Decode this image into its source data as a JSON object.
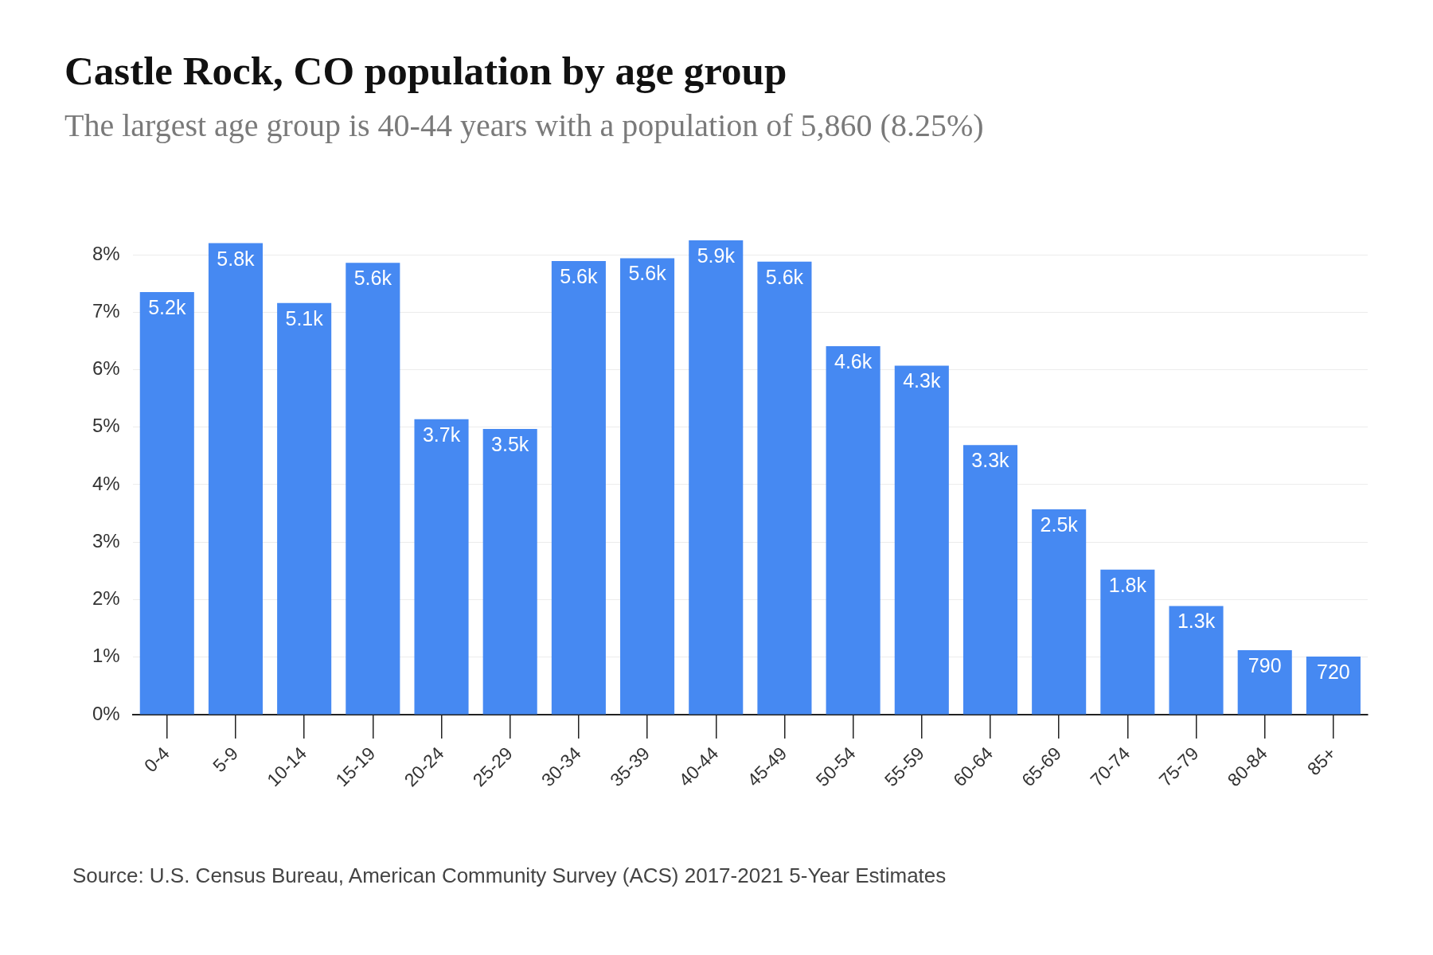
{
  "chart_data": {
    "type": "bar",
    "title": "Castle Rock, CO population by age group",
    "subtitle": "The largest age group is 40-44 years with a population of 5,860 (8.25%)",
    "categories": [
      "0-4",
      "5-9",
      "10-14",
      "15-19",
      "20-24",
      "25-29",
      "30-34",
      "35-39",
      "40-44",
      "45-49",
      "50-54",
      "55-59",
      "60-64",
      "65-69",
      "70-74",
      "75-79",
      "80-84",
      "85+"
    ],
    "values": [
      7.35,
      8.2,
      7.16,
      7.86,
      5.14,
      4.97,
      7.89,
      7.94,
      8.25,
      7.88,
      6.41,
      6.07,
      4.69,
      3.57,
      2.52,
      1.89,
      1.12,
      1.01
    ],
    "color": "#4689f2",
    "ylim": [
      0,
      8.25
    ],
    "yticks": [
      {
        "value": 0,
        "label": "0%"
      },
      {
        "value": 1,
        "label": "1%"
      },
      {
        "value": 2,
        "label": "2%"
      },
      {
        "value": 3,
        "label": "3%"
      },
      {
        "value": 4,
        "label": "4%"
      },
      {
        "value": 5,
        "label": "5%"
      },
      {
        "value": 6,
        "label": "6%"
      },
      {
        "value": 7,
        "label": "7%"
      },
      {
        "value": 8,
        "label": "8%"
      }
    ],
    "grid": "y",
    "annotations": [
      {
        "text": "5.2k",
        "x": "0-4",
        "y": 7.35
      },
      {
        "text": "5.8k",
        "x": "5-9",
        "y": 8.2
      },
      {
        "text": "5.1k",
        "x": "10-14",
        "y": 7.16
      },
      {
        "text": "5.6k",
        "x": "15-19",
        "y": 7.86
      },
      {
        "text": "3.7k",
        "x": "20-24",
        "y": 5.14
      },
      {
        "text": "3.5k",
        "x": "25-29",
        "y": 4.97
      },
      {
        "text": "5.6k",
        "x": "30-34",
        "y": 7.89
      },
      {
        "text": "5.6k",
        "x": "35-39",
        "y": 7.94
      },
      {
        "text": "5.9k",
        "x": "40-44",
        "y": 8.25
      },
      {
        "text": "5.6k",
        "x": "45-49",
        "y": 7.88
      },
      {
        "text": "4.6k",
        "x": "50-54",
        "y": 6.41
      },
      {
        "text": "4.3k",
        "x": "55-59",
        "y": 6.07
      },
      {
        "text": "3.3k",
        "x": "60-64",
        "y": 4.69
      },
      {
        "text": "2.5k",
        "x": "65-69",
        "y": 3.57
      },
      {
        "text": "1.8k",
        "x": "70-74",
        "y": 2.52
      },
      {
        "text": "1.3k",
        "x": "75-79",
        "y": 1.89
      },
      {
        "text": "790",
        "x": "80-84",
        "y": 1.12
      },
      {
        "text": "720",
        "x": "85+",
        "y": 1.01
      },
      "Source: U.S. Census Bureau, American Community Survey (ACS) 2017-2021 5-Year Estimates"
    ]
  }
}
